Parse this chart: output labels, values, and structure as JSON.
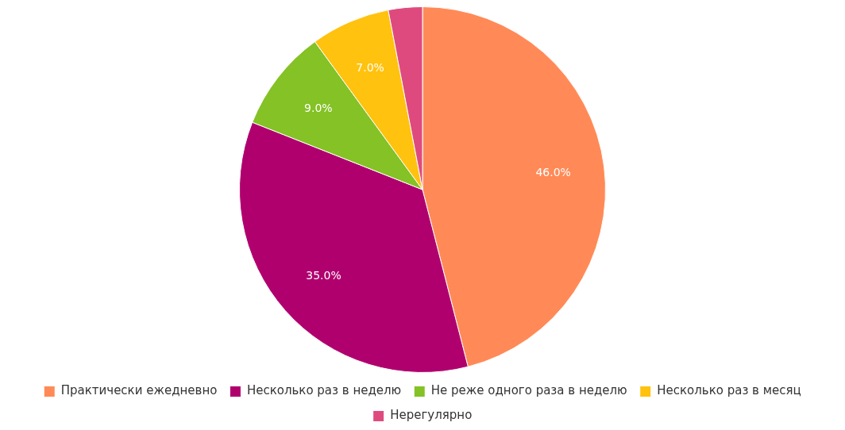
{
  "chart_data": {
    "type": "pie",
    "categories": [
      "Практически ежедневно",
      "Несколько раз в неделю",
      "Не реже одного раза в неделю",
      "Несколько раз в месяц",
      "Нерегулярно"
    ],
    "values": [
      46,
      35,
      9,
      7,
      3
    ],
    "colors": [
      "#ff8a57",
      "#b0006e",
      "#84c225",
      "#ffc20e",
      "#df4a7e"
    ],
    "value_labels": [
      "46.0%",
      "35.0%",
      "9.0%",
      "7.0%",
      null
    ],
    "legend": "bottom"
  }
}
